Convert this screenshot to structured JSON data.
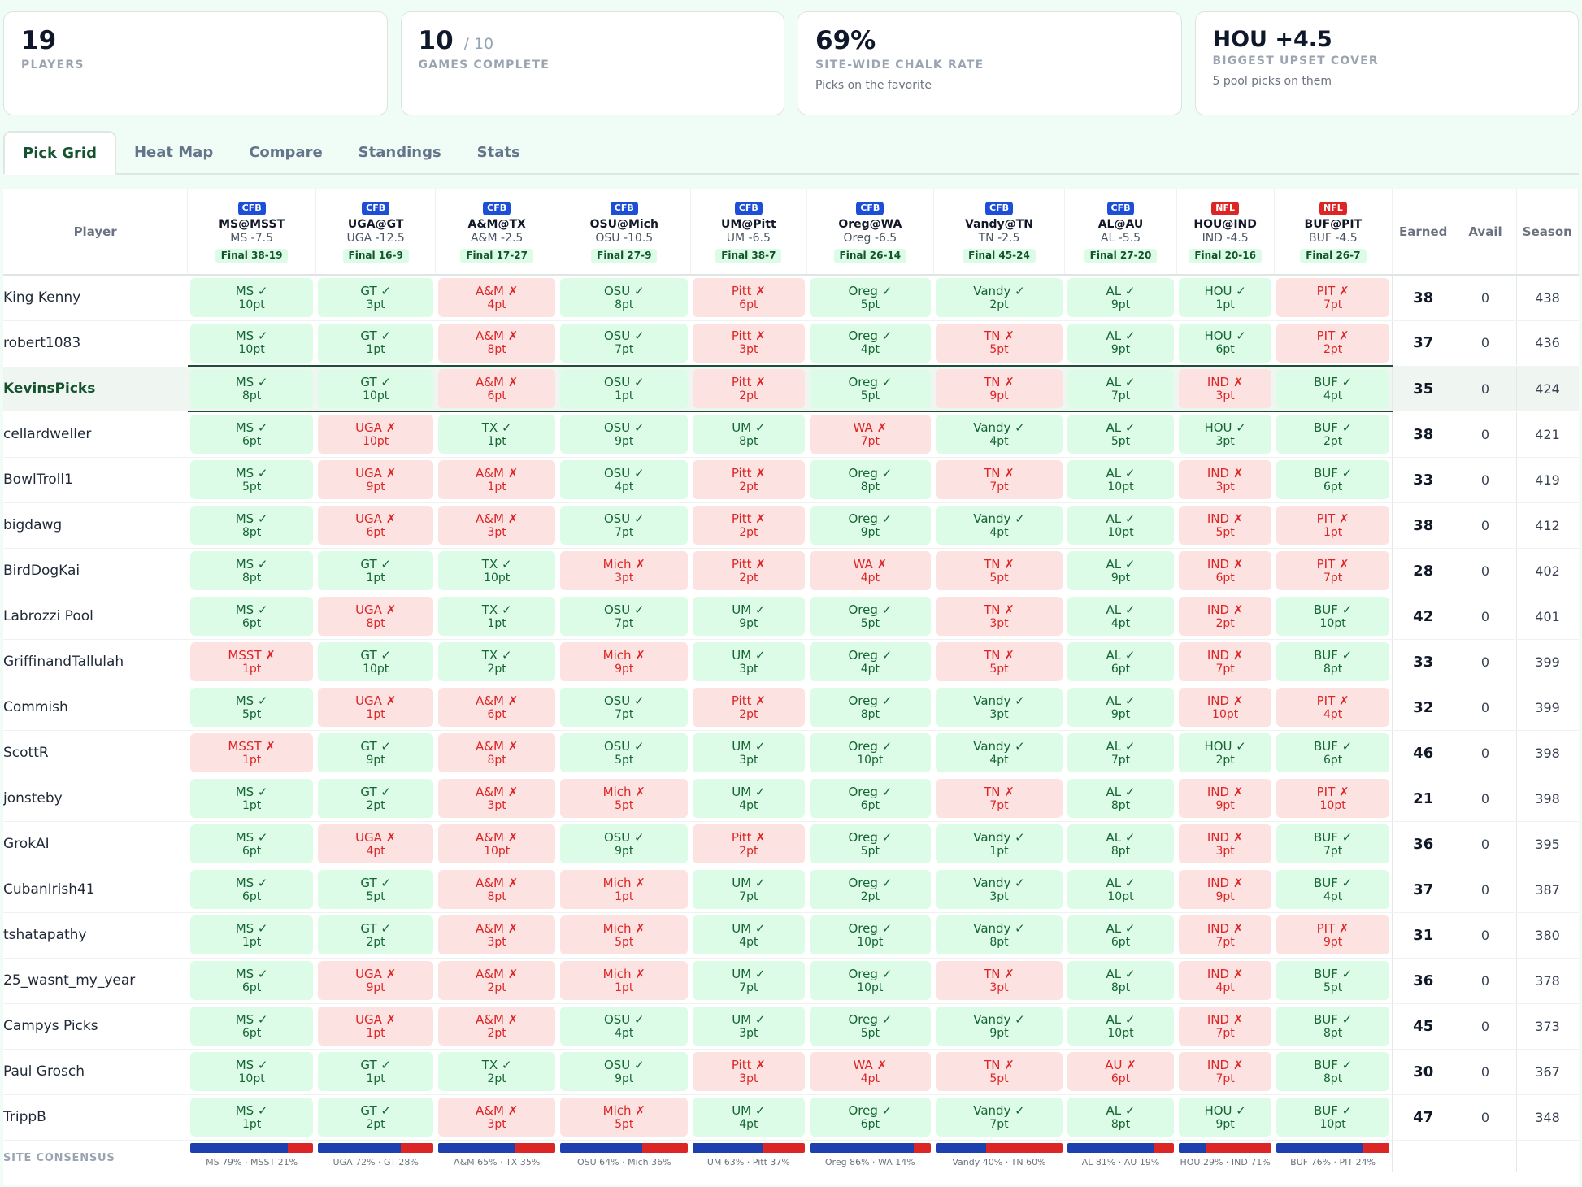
{
  "cards": [
    {
      "value": "19",
      "suffix": "",
      "label": "PLAYERS",
      "sub": ""
    },
    {
      "value": "10",
      "suffix": "/ 10",
      "label": "GAMES COMPLETE",
      "sub": ""
    },
    {
      "value": "69%",
      "suffix": "",
      "label": "SITE-WIDE CHALK RATE",
      "sub": "Picks on the favorite"
    },
    {
      "value": "HOU +4.5",
      "suffix": "",
      "label": "BIGGEST UPSET COVER",
      "sub": "5 pool picks on them"
    }
  ],
  "tabs": [
    "Pick Grid",
    "Heat Map",
    "Compare",
    "Standings",
    "Stats"
  ],
  "active_tab": 0,
  "columns": {
    "player": "Player",
    "earned": "Earned",
    "avail": "Avail",
    "season": "Season"
  },
  "colors": {
    "win_bg": "#dcfce7",
    "win_text": "#166534",
    "loss_bg": "#fde2e2",
    "loss_text": "#dc2626",
    "cfb_badge": "#1d4ed8",
    "nfl_badge": "#dc2626",
    "favorite_bar": "#1e40af",
    "underdog_bar": "#dc2626",
    "highlight_row": "#eff6f1"
  },
  "games": [
    {
      "league": "CFB",
      "matchup": "MS@MSST",
      "spread": "MS -7.5",
      "final": "Final 38-19"
    },
    {
      "league": "CFB",
      "matchup": "UGA@GT",
      "spread": "UGA -12.5",
      "final": "Final 16-9"
    },
    {
      "league": "CFB",
      "matchup": "A&M@TX",
      "spread": "A&M -2.5",
      "final": "Final 17-27"
    },
    {
      "league": "CFB",
      "matchup": "OSU@Mich",
      "spread": "OSU -10.5",
      "final": "Final 27-9"
    },
    {
      "league": "CFB",
      "matchup": "UM@Pitt",
      "spread": "UM -6.5",
      "final": "Final 38-7"
    },
    {
      "league": "CFB",
      "matchup": "Oreg@WA",
      "spread": "Oreg -6.5",
      "final": "Final 26-14"
    },
    {
      "league": "CFB",
      "matchup": "Vandy@TN",
      "spread": "TN -2.5",
      "final": "Final 45-24"
    },
    {
      "league": "CFB",
      "matchup": "AL@AU",
      "spread": "AL -5.5",
      "final": "Final 27-20"
    },
    {
      "league": "NFL",
      "matchup": "HOU@IND",
      "spread": "IND -4.5",
      "final": "Final 20-16"
    },
    {
      "league": "NFL",
      "matchup": "BUF@PIT",
      "spread": "BUF -4.5",
      "final": "Final 26-7"
    }
  ],
  "players": [
    {
      "name": "King Kenny",
      "picks": [
        [
          "MS ✓",
          "10pt",
          "w"
        ],
        [
          "GT ✓",
          "3pt",
          "w"
        ],
        [
          "A&M ✗",
          "4pt",
          "l"
        ],
        [
          "OSU ✓",
          "8pt",
          "w"
        ],
        [
          "Pitt ✗",
          "6pt",
          "l"
        ],
        [
          "Oreg ✓",
          "5pt",
          "w"
        ],
        [
          "Vandy ✓",
          "2pt",
          "w"
        ],
        [
          "AL ✓",
          "9pt",
          "w"
        ],
        [
          "HOU ✓",
          "1pt",
          "w"
        ],
        [
          "PIT ✗",
          "7pt",
          "l"
        ]
      ],
      "earned": "38",
      "avail": "0",
      "season": "438"
    },
    {
      "name": "robert1083",
      "picks": [
        [
          "MS ✓",
          "10pt",
          "w"
        ],
        [
          "GT ✓",
          "1pt",
          "w"
        ],
        [
          "A&M ✗",
          "8pt",
          "l"
        ],
        [
          "OSU ✓",
          "7pt",
          "w"
        ],
        [
          "Pitt ✗",
          "3pt",
          "l"
        ],
        [
          "Oreg ✓",
          "4pt",
          "w"
        ],
        [
          "TN ✗",
          "5pt",
          "l"
        ],
        [
          "AL ✓",
          "9pt",
          "w"
        ],
        [
          "HOU ✓",
          "6pt",
          "w"
        ],
        [
          "PIT ✗",
          "2pt",
          "l"
        ]
      ],
      "earned": "37",
      "avail": "0",
      "season": "436"
    },
    {
      "name": "KevinsPicks",
      "highlight": true,
      "picks": [
        [
          "MS ✓",
          "8pt",
          "w"
        ],
        [
          "GT ✓",
          "10pt",
          "w"
        ],
        [
          "A&M ✗",
          "6pt",
          "l"
        ],
        [
          "OSU ✓",
          "1pt",
          "w"
        ],
        [
          "Pitt ✗",
          "2pt",
          "l"
        ],
        [
          "Oreg ✓",
          "5pt",
          "w"
        ],
        [
          "TN ✗",
          "9pt",
          "l"
        ],
        [
          "AL ✓",
          "7pt",
          "w"
        ],
        [
          "IND ✗",
          "3pt",
          "l"
        ],
        [
          "BUF ✓",
          "4pt",
          "w"
        ]
      ],
      "earned": "35",
      "avail": "0",
      "season": "424"
    },
    {
      "name": "cellardweller",
      "picks": [
        [
          "MS ✓",
          "6pt",
          "w"
        ],
        [
          "UGA ✗",
          "10pt",
          "l"
        ],
        [
          "TX ✓",
          "1pt",
          "w"
        ],
        [
          "OSU ✓",
          "9pt",
          "w"
        ],
        [
          "UM ✓",
          "8pt",
          "w"
        ],
        [
          "WA ✗",
          "7pt",
          "l"
        ],
        [
          "Vandy ✓",
          "4pt",
          "w"
        ],
        [
          "AL ✓",
          "5pt",
          "w"
        ],
        [
          "HOU ✓",
          "3pt",
          "w"
        ],
        [
          "BUF ✓",
          "2pt",
          "w"
        ]
      ],
      "earned": "38",
      "avail": "0",
      "season": "421"
    },
    {
      "name": "BowlTroll1",
      "picks": [
        [
          "MS ✓",
          "5pt",
          "w"
        ],
        [
          "UGA ✗",
          "9pt",
          "l"
        ],
        [
          "A&M ✗",
          "1pt",
          "l"
        ],
        [
          "OSU ✓",
          "4pt",
          "w"
        ],
        [
          "Pitt ✗",
          "2pt",
          "l"
        ],
        [
          "Oreg ✓",
          "8pt",
          "w"
        ],
        [
          "TN ✗",
          "7pt",
          "l"
        ],
        [
          "AL ✓",
          "10pt",
          "w"
        ],
        [
          "IND ✗",
          "3pt",
          "l"
        ],
        [
          "BUF ✓",
          "6pt",
          "w"
        ]
      ],
      "earned": "33",
      "avail": "0",
      "season": "419"
    },
    {
      "name": "bigdawg",
      "picks": [
        [
          "MS ✓",
          "8pt",
          "w"
        ],
        [
          "UGA ✗",
          "6pt",
          "l"
        ],
        [
          "A&M ✗",
          "3pt",
          "l"
        ],
        [
          "OSU ✓",
          "7pt",
          "w"
        ],
        [
          "Pitt ✗",
          "2pt",
          "l"
        ],
        [
          "Oreg ✓",
          "9pt",
          "w"
        ],
        [
          "Vandy ✓",
          "4pt",
          "w"
        ],
        [
          "AL ✓",
          "10pt",
          "w"
        ],
        [
          "IND ✗",
          "5pt",
          "l"
        ],
        [
          "PIT ✗",
          "1pt",
          "l"
        ]
      ],
      "earned": "38",
      "avail": "0",
      "season": "412"
    },
    {
      "name": "BirdDogKai",
      "picks": [
        [
          "MS ✓",
          "8pt",
          "w"
        ],
        [
          "GT ✓",
          "1pt",
          "w"
        ],
        [
          "TX ✓",
          "10pt",
          "w"
        ],
        [
          "Mich ✗",
          "3pt",
          "l"
        ],
        [
          "Pitt ✗",
          "2pt",
          "l"
        ],
        [
          "WA ✗",
          "4pt",
          "l"
        ],
        [
          "TN ✗",
          "5pt",
          "l"
        ],
        [
          "AL ✓",
          "9pt",
          "w"
        ],
        [
          "IND ✗",
          "6pt",
          "l"
        ],
        [
          "PIT ✗",
          "7pt",
          "l"
        ]
      ],
      "earned": "28",
      "avail": "0",
      "season": "402"
    },
    {
      "name": "Labrozzi Pool",
      "picks": [
        [
          "MS ✓",
          "6pt",
          "w"
        ],
        [
          "UGA ✗",
          "8pt",
          "l"
        ],
        [
          "TX ✓",
          "1pt",
          "w"
        ],
        [
          "OSU ✓",
          "7pt",
          "w"
        ],
        [
          "UM ✓",
          "9pt",
          "w"
        ],
        [
          "Oreg ✓",
          "5pt",
          "w"
        ],
        [
          "TN ✗",
          "3pt",
          "l"
        ],
        [
          "AL ✓",
          "4pt",
          "w"
        ],
        [
          "IND ✗",
          "2pt",
          "l"
        ],
        [
          "BUF ✓",
          "10pt",
          "w"
        ]
      ],
      "earned": "42",
      "avail": "0",
      "season": "401"
    },
    {
      "name": "GriffinandTallulah",
      "picks": [
        [
          "MSST ✗",
          "1pt",
          "l"
        ],
        [
          "GT ✓",
          "10pt",
          "w"
        ],
        [
          "TX ✓",
          "2pt",
          "w"
        ],
        [
          "Mich ✗",
          "9pt",
          "l"
        ],
        [
          "UM ✓",
          "3pt",
          "w"
        ],
        [
          "Oreg ✓",
          "4pt",
          "w"
        ],
        [
          "TN ✗",
          "5pt",
          "l"
        ],
        [
          "AL ✓",
          "6pt",
          "w"
        ],
        [
          "IND ✗",
          "7pt",
          "l"
        ],
        [
          "BUF ✓",
          "8pt",
          "w"
        ]
      ],
      "earned": "33",
      "avail": "0",
      "season": "399"
    },
    {
      "name": "Commish",
      "picks": [
        [
          "MS ✓",
          "5pt",
          "w"
        ],
        [
          "UGA ✗",
          "1pt",
          "l"
        ],
        [
          "A&M ✗",
          "6pt",
          "l"
        ],
        [
          "OSU ✓",
          "7pt",
          "w"
        ],
        [
          "Pitt ✗",
          "2pt",
          "l"
        ],
        [
          "Oreg ✓",
          "8pt",
          "w"
        ],
        [
          "Vandy ✓",
          "3pt",
          "w"
        ],
        [
          "AL ✓",
          "9pt",
          "w"
        ],
        [
          "IND ✗",
          "10pt",
          "l"
        ],
        [
          "PIT ✗",
          "4pt",
          "l"
        ]
      ],
      "earned": "32",
      "avail": "0",
      "season": "399"
    },
    {
      "name": "ScottR",
      "picks": [
        [
          "MSST ✗",
          "1pt",
          "l"
        ],
        [
          "GT ✓",
          "9pt",
          "w"
        ],
        [
          "A&M ✗",
          "8pt",
          "l"
        ],
        [
          "OSU ✓",
          "5pt",
          "w"
        ],
        [
          "UM ✓",
          "3pt",
          "w"
        ],
        [
          "Oreg ✓",
          "10pt",
          "w"
        ],
        [
          "Vandy ✓",
          "4pt",
          "w"
        ],
        [
          "AL ✓",
          "7pt",
          "w"
        ],
        [
          "HOU ✓",
          "2pt",
          "w"
        ],
        [
          "BUF ✓",
          "6pt",
          "w"
        ]
      ],
      "earned": "46",
      "avail": "0",
      "season": "398"
    },
    {
      "name": "jonsteby",
      "picks": [
        [
          "MS ✓",
          "1pt",
          "w"
        ],
        [
          "GT ✓",
          "2pt",
          "w"
        ],
        [
          "A&M ✗",
          "3pt",
          "l"
        ],
        [
          "Mich ✗",
          "5pt",
          "l"
        ],
        [
          "UM ✓",
          "4pt",
          "w"
        ],
        [
          "Oreg ✓",
          "6pt",
          "w"
        ],
        [
          "TN ✗",
          "7pt",
          "l"
        ],
        [
          "AL ✓",
          "8pt",
          "w"
        ],
        [
          "IND ✗",
          "9pt",
          "l"
        ],
        [
          "PIT ✗",
          "10pt",
          "l"
        ]
      ],
      "earned": "21",
      "avail": "0",
      "season": "398"
    },
    {
      "name": "GrokAI",
      "picks": [
        [
          "MS ✓",
          "6pt",
          "w"
        ],
        [
          "UGA ✗",
          "4pt",
          "l"
        ],
        [
          "A&M ✗",
          "10pt",
          "l"
        ],
        [
          "OSU ✓",
          "9pt",
          "w"
        ],
        [
          "Pitt ✗",
          "2pt",
          "l"
        ],
        [
          "Oreg ✓",
          "5pt",
          "w"
        ],
        [
          "Vandy ✓",
          "1pt",
          "w"
        ],
        [
          "AL ✓",
          "8pt",
          "w"
        ],
        [
          "IND ✗",
          "3pt",
          "l"
        ],
        [
          "BUF ✓",
          "7pt",
          "w"
        ]
      ],
      "earned": "36",
      "avail": "0",
      "season": "395"
    },
    {
      "name": "CubanIrish41",
      "picks": [
        [
          "MS ✓",
          "6pt",
          "w"
        ],
        [
          "GT ✓",
          "5pt",
          "w"
        ],
        [
          "A&M ✗",
          "8pt",
          "l"
        ],
        [
          "Mich ✗",
          "1pt",
          "l"
        ],
        [
          "UM ✓",
          "7pt",
          "w"
        ],
        [
          "Oreg ✓",
          "2pt",
          "w"
        ],
        [
          "Vandy ✓",
          "3pt",
          "w"
        ],
        [
          "AL ✓",
          "10pt",
          "w"
        ],
        [
          "IND ✗",
          "9pt",
          "l"
        ],
        [
          "BUF ✓",
          "4pt",
          "w"
        ]
      ],
      "earned": "37",
      "avail": "0",
      "season": "387"
    },
    {
      "name": "tshatapathy",
      "picks": [
        [
          "MS ✓",
          "1pt",
          "w"
        ],
        [
          "GT ✓",
          "2pt",
          "w"
        ],
        [
          "A&M ✗",
          "3pt",
          "l"
        ],
        [
          "Mich ✗",
          "5pt",
          "l"
        ],
        [
          "UM ✓",
          "4pt",
          "w"
        ],
        [
          "Oreg ✓",
          "10pt",
          "w"
        ],
        [
          "Vandy ✓",
          "8pt",
          "w"
        ],
        [
          "AL ✓",
          "6pt",
          "w"
        ],
        [
          "IND ✗",
          "7pt",
          "l"
        ],
        [
          "PIT ✗",
          "9pt",
          "l"
        ]
      ],
      "earned": "31",
      "avail": "0",
      "season": "380"
    },
    {
      "name": "25_wasnt_my_year",
      "picks": [
        [
          "MS ✓",
          "6pt",
          "w"
        ],
        [
          "UGA ✗",
          "9pt",
          "l"
        ],
        [
          "A&M ✗",
          "2pt",
          "l"
        ],
        [
          "Mich ✗",
          "1pt",
          "l"
        ],
        [
          "UM ✓",
          "7pt",
          "w"
        ],
        [
          "Oreg ✓",
          "10pt",
          "w"
        ],
        [
          "TN ✗",
          "3pt",
          "l"
        ],
        [
          "AL ✓",
          "8pt",
          "w"
        ],
        [
          "IND ✗",
          "4pt",
          "l"
        ],
        [
          "BUF ✓",
          "5pt",
          "w"
        ]
      ],
      "earned": "36",
      "avail": "0",
      "season": "378"
    },
    {
      "name": "Campys Picks",
      "picks": [
        [
          "MS ✓",
          "6pt",
          "w"
        ],
        [
          "UGA ✗",
          "1pt",
          "l"
        ],
        [
          "A&M ✗",
          "2pt",
          "l"
        ],
        [
          "OSU ✓",
          "4pt",
          "w"
        ],
        [
          "UM ✓",
          "3pt",
          "w"
        ],
        [
          "Oreg ✓",
          "5pt",
          "w"
        ],
        [
          "Vandy ✓",
          "9pt",
          "w"
        ],
        [
          "AL ✓",
          "10pt",
          "w"
        ],
        [
          "IND ✗",
          "7pt",
          "l"
        ],
        [
          "BUF ✓",
          "8pt",
          "w"
        ]
      ],
      "earned": "45",
      "avail": "0",
      "season": "373"
    },
    {
      "name": "Paul Grosch",
      "picks": [
        [
          "MS ✓",
          "10pt",
          "w"
        ],
        [
          "GT ✓",
          "1pt",
          "w"
        ],
        [
          "TX ✓",
          "2pt",
          "w"
        ],
        [
          "OSU ✓",
          "9pt",
          "w"
        ],
        [
          "Pitt ✗",
          "3pt",
          "l"
        ],
        [
          "WA ✗",
          "4pt",
          "l"
        ],
        [
          "TN ✗",
          "5pt",
          "l"
        ],
        [
          "AU ✗",
          "6pt",
          "l"
        ],
        [
          "IND ✗",
          "7pt",
          "l"
        ],
        [
          "BUF ✓",
          "8pt",
          "w"
        ]
      ],
      "earned": "30",
      "avail": "0",
      "season": "367"
    },
    {
      "name": "TrippB",
      "picks": [
        [
          "MS ✓",
          "1pt",
          "w"
        ],
        [
          "GT ✓",
          "2pt",
          "w"
        ],
        [
          "A&M ✗",
          "3pt",
          "l"
        ],
        [
          "Mich ✗",
          "5pt",
          "l"
        ],
        [
          "UM ✓",
          "4pt",
          "w"
        ],
        [
          "Oreg ✓",
          "6pt",
          "w"
        ],
        [
          "Vandy ✓",
          "7pt",
          "w"
        ],
        [
          "AL ✓",
          "8pt",
          "w"
        ],
        [
          "HOU ✓",
          "9pt",
          "w"
        ],
        [
          "BUF ✓",
          "10pt",
          "w"
        ]
      ],
      "earned": "47",
      "avail": "0",
      "season": "348"
    }
  ],
  "consensus": {
    "label": "SITE CONSENSUS",
    "games": [
      {
        "left_pct": 79,
        "text": "MS 79% · MSST 21%"
      },
      {
        "left_pct": 72,
        "text": "UGA 72% · GT 28%"
      },
      {
        "left_pct": 65,
        "text": "A&M 65% · TX 35%"
      },
      {
        "left_pct": 64,
        "text": "OSU 64% · Mich 36%"
      },
      {
        "left_pct": 63,
        "text": "UM 63% · Pitt 37%"
      },
      {
        "left_pct": 86,
        "text": "Oreg 86% · WA 14%"
      },
      {
        "left_pct": 40,
        "text": "Vandy 40% · TN 60%"
      },
      {
        "left_pct": 81,
        "text": "AL 81% · AU 19%"
      },
      {
        "left_pct": 29,
        "text": "HOU 29% · IND 71%"
      },
      {
        "left_pct": 76,
        "text": "BUF 76% · PIT 24%"
      }
    ]
  }
}
